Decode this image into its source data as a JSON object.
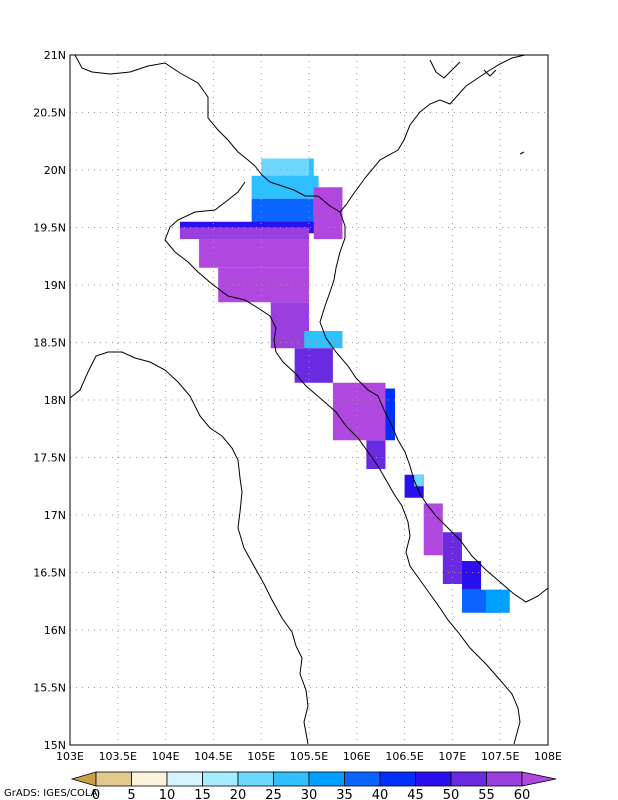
{
  "map": {
    "lon_range": [
      103,
      108
    ],
    "lat_range": [
      15,
      21
    ],
    "lon_ticks": [
      "103E",
      "103.5E",
      "104E",
      "104.5E",
      "105E",
      "105.5E",
      "106E",
      "106.5E",
      "107E",
      "107.5E",
      "108E"
    ],
    "lat_ticks": [
      "15N",
      "15.5N",
      "16N",
      "16.5N",
      "17N",
      "17.5N",
      "18N",
      "18.5N",
      "19N",
      "19.5N",
      "20N",
      "20.5N",
      "21N"
    ],
    "grid": "dotted"
  },
  "colorbar": {
    "levels": [
      "0",
      "5",
      "10",
      "15",
      "20",
      "25",
      "30",
      "35",
      "40",
      "45",
      "50",
      "55",
      "60"
    ],
    "colors": [
      "#c8a04a",
      "#e2c98e",
      "#fbf3dc",
      "#d6f6ff",
      "#a6ecff",
      "#6ed7ff",
      "#2ec0ff",
      "#00a0ff",
      "#0a64ff",
      "#0030ff",
      "#2a10ee",
      "#6a2ae0",
      "#9a3ee0",
      "#b048e0"
    ]
  },
  "credit": "GrADS: IGES/COLA",
  "field_patches": [
    {
      "lon": [
        105.0,
        105.5
      ],
      "lat": [
        19.9,
        20.1
      ],
      "value": 20
    },
    {
      "lon": [
        105.5,
        105.55
      ],
      "lat": [
        19.9,
        20.1
      ],
      "value": 25
    },
    {
      "lon": [
        104.9,
        105.6
      ],
      "lat": [
        19.75,
        19.95
      ],
      "value": 25
    },
    {
      "lon": [
        104.9,
        105.55
      ],
      "lat": [
        19.5,
        19.75
      ],
      "value": 35
    },
    {
      "lon": [
        104.15,
        105.6
      ],
      "lat": [
        19.45,
        19.55
      ],
      "value": 45
    },
    {
      "lon": [
        105.55,
        105.85
      ],
      "lat": [
        19.4,
        19.85
      ],
      "value": 60
    },
    {
      "lon": [
        104.15,
        105.5
      ],
      "lat": [
        19.4,
        19.5
      ],
      "value": 55
    },
    {
      "lon": [
        104.35,
        105.5
      ],
      "lat": [
        19.15,
        19.4
      ],
      "value": 60
    },
    {
      "lon": [
        104.55,
        105.5
      ],
      "lat": [
        18.85,
        19.15
      ],
      "value": 60
    },
    {
      "lon": [
        105.1,
        105.5
      ],
      "lat": [
        18.45,
        18.85
      ],
      "value": 55
    },
    {
      "lon": [
        105.45,
        105.85
      ],
      "lat": [
        18.45,
        18.6
      ],
      "value": 25
    },
    {
      "lon": [
        105.35,
        105.75
      ],
      "lat": [
        18.15,
        18.45
      ],
      "value": 50
    },
    {
      "lon": [
        105.75,
        106.3
      ],
      "lat": [
        17.65,
        18.15
      ],
      "value": 60
    },
    {
      "lon": [
        106.3,
        106.4
      ],
      "lat": [
        17.65,
        18.1
      ],
      "value": 40
    },
    {
      "lon": [
        106.1,
        106.3
      ],
      "lat": [
        17.4,
        17.65
      ],
      "value": 50
    },
    {
      "lon": [
        106.5,
        106.7
      ],
      "lat": [
        17.15,
        17.35
      ],
      "value": 45
    },
    {
      "lon": [
        106.6,
        106.7
      ],
      "lat": [
        17.25,
        17.35
      ],
      "value": 20
    },
    {
      "lon": [
        106.7,
        106.9
      ],
      "lat": [
        16.65,
        17.1
      ],
      "value": 60
    },
    {
      "lon": [
        106.9,
        107.1
      ],
      "lat": [
        16.4,
        16.85
      ],
      "value": 50
    },
    {
      "lon": [
        107.1,
        107.3
      ],
      "lat": [
        16.35,
        16.6
      ],
      "value": 45
    },
    {
      "lon": [
        107.1,
        107.5
      ],
      "lat": [
        16.15,
        16.35
      ],
      "value": 35
    },
    {
      "lon": [
        107.35,
        107.6
      ],
      "lat": [
        16.15,
        16.35
      ],
      "value": 30
    }
  ]
}
